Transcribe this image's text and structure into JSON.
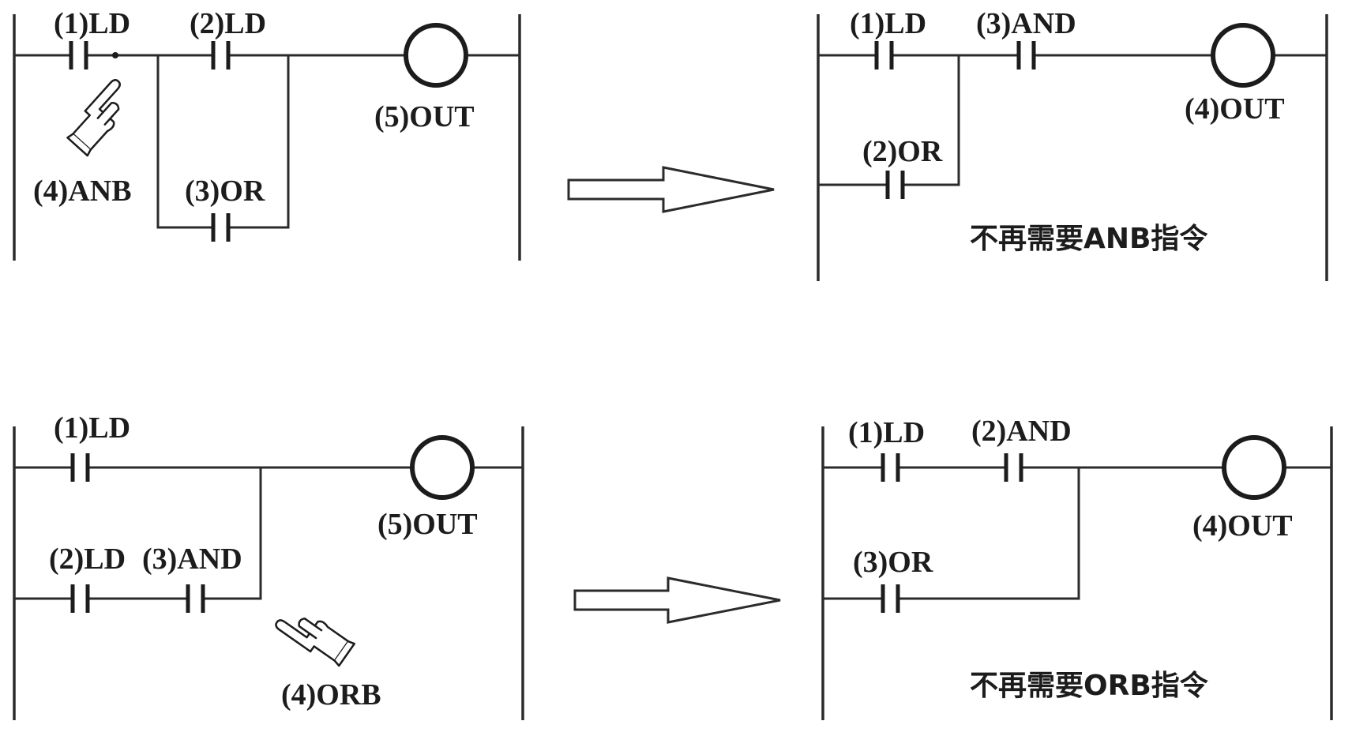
{
  "diagram_top_left": {
    "labels": {
      "ld1": "(1)LD",
      "ld2": "(2)LD",
      "or3": "(3)OR",
      "anb4": "(4)ANB",
      "out5": "(5)OUT"
    }
  },
  "diagram_top_right": {
    "labels": {
      "ld1": "(1)LD",
      "or2": "(2)OR",
      "and3": "(3)AND",
      "out4": "(4)OUT"
    },
    "note": "不再需要ANB指令"
  },
  "diagram_bottom_left": {
    "labels": {
      "ld1": "(1)LD",
      "ld2": "(2)LD",
      "and3": "(3)AND",
      "orb4": "(4)ORB",
      "out5": "(5)OUT"
    }
  },
  "diagram_bottom_right": {
    "labels": {
      "ld1": "(1)LD",
      "and2": "(2)AND",
      "or3": "(3)OR",
      "out4": "(4)OUT"
    },
    "note": "不再需要ORB指令"
  },
  "icons": {
    "arrow": "hollow-right-arrow-icon",
    "hand": "pointing-hand-icon"
  }
}
